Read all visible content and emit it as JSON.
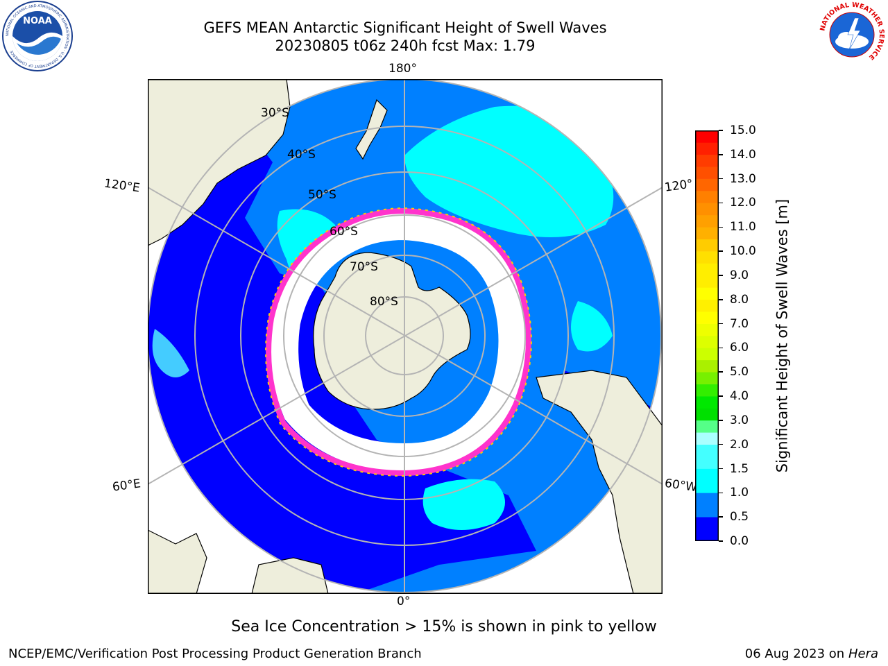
{
  "header": {
    "title_line1": "GEFS MEAN Antarctic Significant Height of Swell Waves",
    "title_line2": "20230805 t06z 240h fcst   Max: 1.79"
  },
  "logos": {
    "noaa_text": "NOAA",
    "noaa_ring_text": "NATIONAL OCEANIC AND ATMOSPHERIC ADMINISTRATION · U.S. DEPARTMENT OF COMMERCE",
    "nws_ring_text": "NATIONAL WEATHER SERVICE"
  },
  "map": {
    "longitude_labels": {
      "top": "180°",
      "bottom": "0°",
      "left_upper": "120°E",
      "left_lower": "60°E",
      "right_upper": "120°",
      "right_lower": "60°W"
    },
    "latitude_labels": [
      "30°S",
      "40°S",
      "50°S",
      "60°S",
      "70°S",
      "80°S"
    ],
    "colors": {
      "land": "#eeeedc",
      "ocean_low": "#0000ff",
      "ocean_mid": "#0080ff",
      "ocean_high": "#00ffff",
      "ice": "#ffffff",
      "ice_edge": "#ff33cc",
      "grid": "#b4b4b4"
    }
  },
  "colorbar": {
    "label": "Significant Height of Swell Waves [m]",
    "ticks": [
      "15.0",
      "14.0",
      "13.0",
      "12.0",
      "11.0",
      "10.0",
      "9.0",
      "8.0",
      "7.0",
      "6.0",
      "5.0",
      "4.0",
      "3.0",
      "2.0",
      "1.5",
      "1.0",
      "0.5",
      "0.0"
    ],
    "levels": [
      0.0,
      0.5,
      1.0,
      1.5,
      2.0,
      2.5,
      3.0,
      3.5,
      4.0,
      4.5,
      5.0,
      5.5,
      6.0,
      6.5,
      7.0,
      7.5,
      8.0,
      8.5,
      9.0,
      9.5,
      10.0,
      10.5,
      11.0,
      11.5,
      12.0,
      12.5,
      13.0,
      13.5,
      14.0,
      14.5,
      15.0
    ],
    "colors": [
      "#0000ff",
      "#0080ff",
      "#00ffff",
      "#44ffff",
      "#aaffff",
      "#55ff88",
      "#00e000",
      "#00e800",
      "#33ee00",
      "#77f000",
      "#aaf000",
      "#ccff00",
      "#ddff00",
      "#eeff00",
      "#ffff00",
      "#fff000",
      "#ffff00",
      "#ffee00",
      "#ffee00",
      "#ffe000",
      "#ffcc00",
      "#ffb000",
      "#ffa000",
      "#ff9000",
      "#ff8000",
      "#ff6600",
      "#ff5000",
      "#ff3c00",
      "#ff2000",
      "#ff0000"
    ]
  },
  "footer": {
    "note": "Sea Ice Concentration > 15% is shown in pink to yellow",
    "credit_left": "NCEP/EMC/Verification Post Processing Product Generation Branch",
    "credit_date": "06 Aug 2023 on",
    "credit_host": "Hera"
  }
}
